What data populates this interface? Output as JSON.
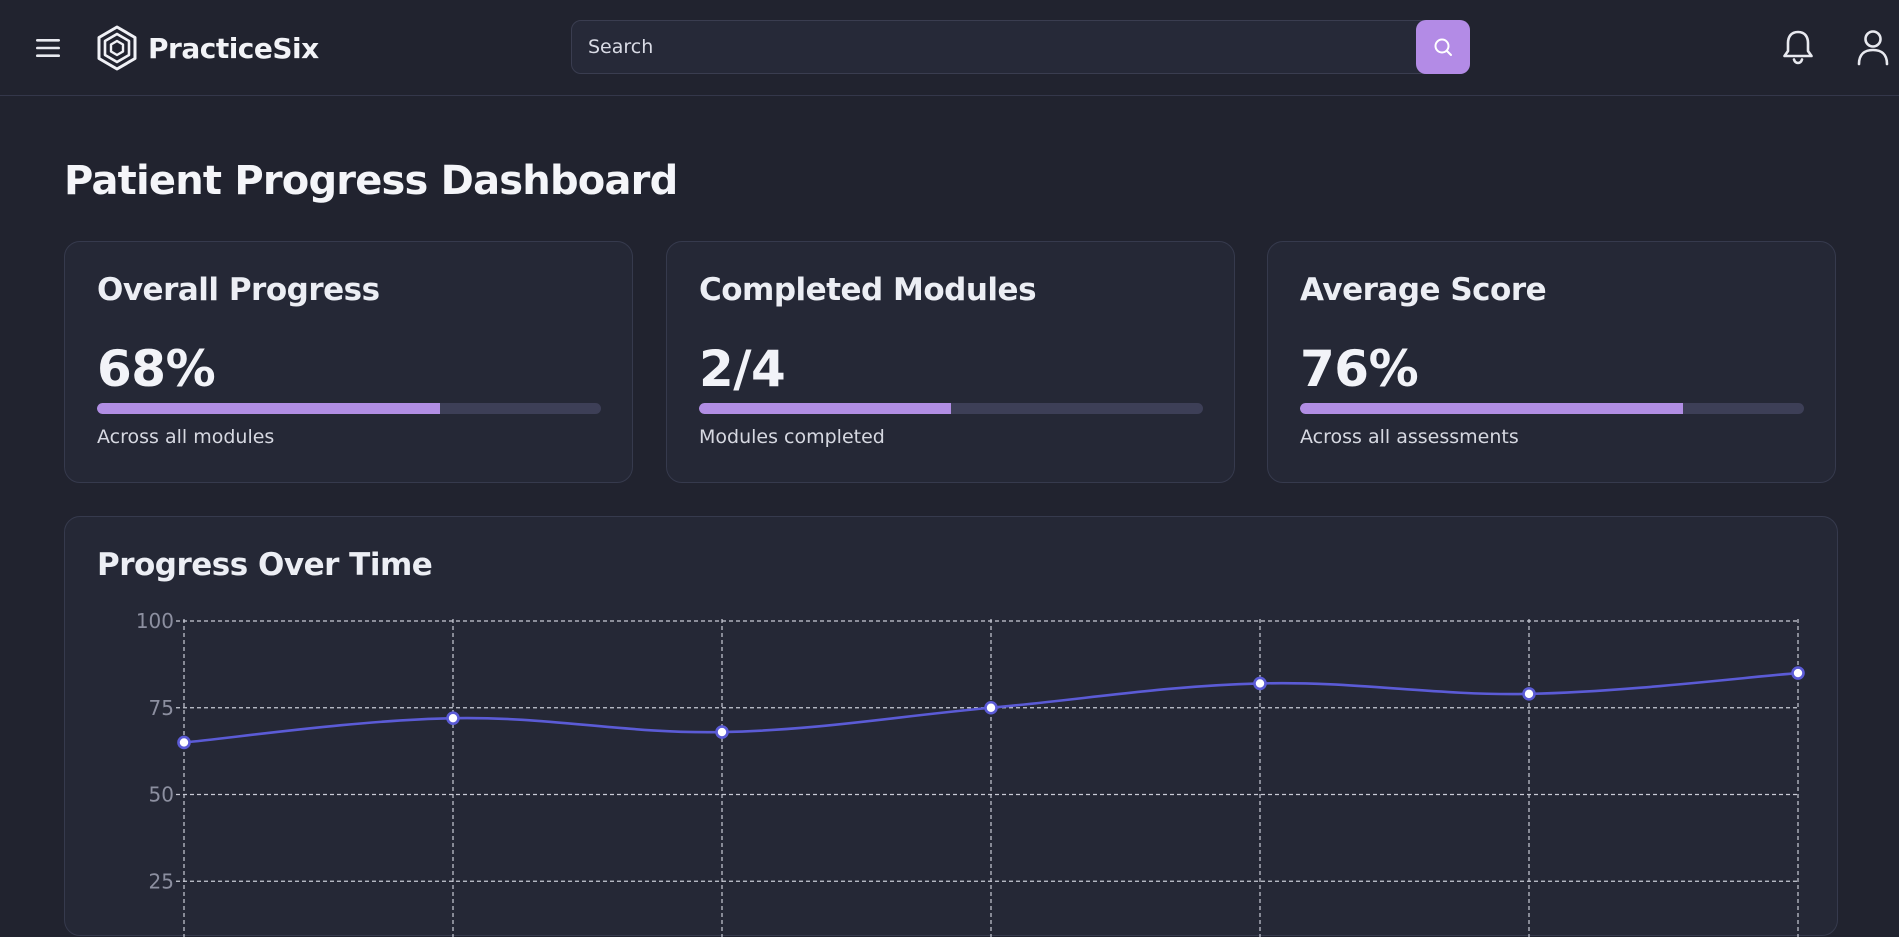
{
  "app": {
    "name": "PracticeSix",
    "search_placeholder": "Search"
  },
  "icons": {
    "menu": "menu-icon",
    "logo": "hexagon-logo-icon",
    "search": "search-icon",
    "notifications": "bell-icon",
    "profile": "user-icon"
  },
  "colors": {
    "accent": "#b38be6",
    "line": "#5b5bd6",
    "background": "#21232f",
    "card": "#252836"
  },
  "page": {
    "title": "Patient Progress Dashboard"
  },
  "cards": [
    {
      "title": "Overall Progress",
      "value": "68%",
      "progress": 0.68,
      "subtitle": "Across all modules"
    },
    {
      "title": "Completed Modules",
      "value": "2/4",
      "progress": 0.5,
      "subtitle": "Modules completed"
    },
    {
      "title": "Average Score",
      "value": "76%",
      "progress": 0.76,
      "subtitle": "Across all assessments"
    }
  ],
  "progress_chart": {
    "title": "Progress Over Time"
  },
  "chart_data": {
    "type": "line",
    "title": "Progress Over Time",
    "x": [
      1,
      2,
      3,
      4,
      5,
      6,
      7
    ],
    "series": [
      {
        "values": [
          65,
          72,
          68,
          75,
          82,
          79,
          85
        ]
      }
    ],
    "ylim": [
      0,
      100
    ],
    "yticks": [
      "100",
      "75",
      "50",
      "25"
    ],
    "grid": true
  }
}
